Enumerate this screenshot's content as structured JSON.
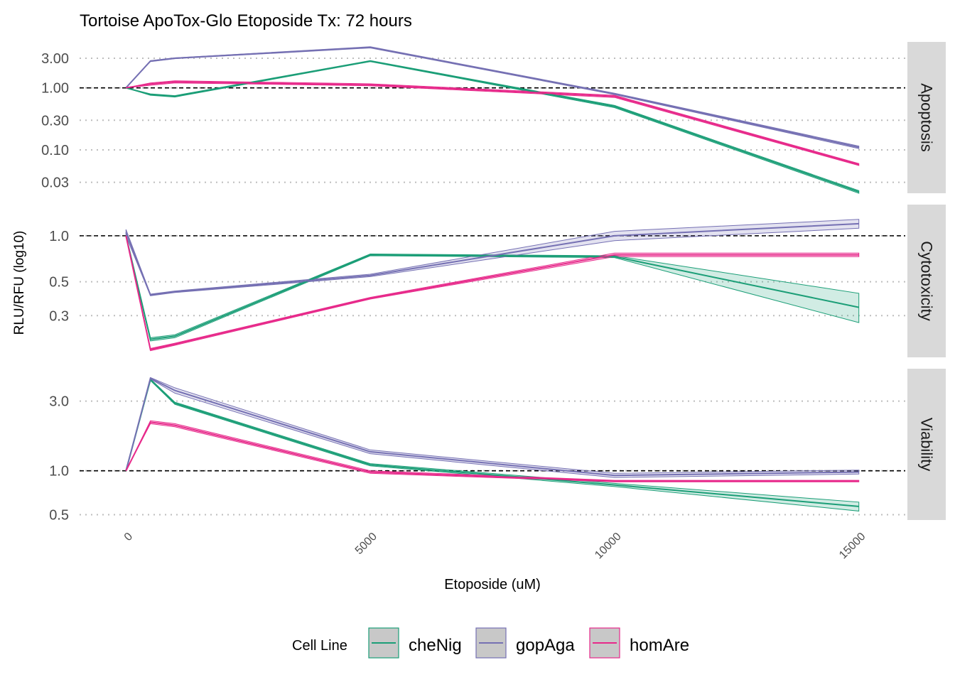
{
  "chart_data": {
    "type": "line",
    "title": "Tortoise ApoTox-Glo Etoposide Tx: 72 hours",
    "xlabel": "Etoposide (uM)",
    "ylabel": "RLU/RFU (log10)",
    "x_scale": "linear",
    "y_scale": "log10",
    "x_ticks": [
      0,
      5000,
      10000,
      15000
    ],
    "x_tick_labels": [
      "0",
      "5000",
      "10000",
      "15000"
    ],
    "x": [
      0,
      500,
      1000,
      5000,
      10000,
      15000
    ],
    "reference_line": 1.0,
    "legend": {
      "title": "Cell Line",
      "position": "bottom",
      "entries": [
        "cheNig",
        "gopAga",
        "homAre"
      ]
    },
    "colors": {
      "cheNig": "#1b9e77",
      "gopAga": "#7570b3",
      "homAre": "#e7298a"
    },
    "panels": [
      {
        "label": "Apoptosis",
        "ylim": [
          0.02,
          5.5
        ],
        "y_ticks": [
          0.03,
          0.1,
          0.3,
          1.0,
          3.0
        ],
        "y_tick_labels": [
          "0.03",
          "0.10",
          "0.30",
          "1.00",
          "3.00"
        ],
        "series": [
          {
            "name": "cheNig",
            "values": [
              1.0,
              0.78,
              0.73,
              2.7,
              0.5,
              0.021
            ],
            "lower": [
              1.0,
              0.76,
              0.71,
              2.65,
              0.48,
              0.02
            ],
            "upper": [
              1.0,
              0.8,
              0.75,
              2.75,
              0.52,
              0.022
            ]
          },
          {
            "name": "gopAga",
            "values": [
              1.0,
              2.7,
              3.0,
              4.5,
              0.8,
              0.11
            ],
            "lower": [
              1.0,
              2.65,
              2.95,
              4.4,
              0.78,
              0.105
            ],
            "upper": [
              1.0,
              2.75,
              3.05,
              4.6,
              0.82,
              0.115
            ]
          },
          {
            "name": "homAre",
            "values": [
              1.0,
              1.15,
              1.25,
              1.12,
              0.73,
              0.058
            ],
            "lower": [
              1.0,
              1.1,
              1.2,
              1.08,
              0.7,
              0.056
            ],
            "upper": [
              1.0,
              1.2,
              1.3,
              1.16,
              0.76,
              0.06
            ]
          }
        ]
      },
      {
        "label": "Cytotoxicity",
        "ylim": [
          0.16,
          1.6
        ],
        "y_ticks": [
          0.3,
          0.5,
          1.0
        ],
        "y_tick_labels": [
          "0.3",
          "0.5",
          "1.0"
        ],
        "series": [
          {
            "name": "cheNig",
            "values": [
              1.0,
              0.21,
              0.22,
              0.75,
              0.73,
              0.34
            ],
            "lower": [
              1.0,
              0.205,
              0.215,
              0.74,
              0.72,
              0.27
            ],
            "upper": [
              1.0,
              0.215,
              0.225,
              0.76,
              0.74,
              0.42
            ]
          },
          {
            "name": "gopAga",
            "values": [
              1.05,
              0.41,
              0.43,
              0.55,
              1.0,
              1.2
            ],
            "lower": [
              1.0,
              0.405,
              0.425,
              0.54,
              0.93,
              1.12
            ],
            "upper": [
              1.1,
              0.415,
              0.435,
              0.56,
              1.07,
              1.28
            ]
          },
          {
            "name": "homAre",
            "values": [
              1.0,
              0.18,
              0.195,
              0.39,
              0.75,
              0.75
            ],
            "lower": [
              1.0,
              0.177,
              0.192,
              0.385,
              0.73,
              0.73
            ],
            "upper": [
              1.0,
              0.183,
              0.198,
              0.395,
              0.77,
              0.77
            ]
          }
        ]
      },
      {
        "label": "Viability",
        "ylim": [
          0.46,
          5.0
        ],
        "y_ticks": [
          0.5,
          1.0,
          3.0
        ],
        "y_tick_labels": [
          "0.5",
          "1.0",
          "3.0"
        ],
        "series": [
          {
            "name": "cheNig",
            "values": [
              1.0,
              4.2,
              2.9,
              1.1,
              0.8,
              0.57
            ],
            "lower": [
              1.0,
              4.15,
              2.85,
              1.08,
              0.78,
              0.53
            ],
            "upper": [
              1.0,
              4.25,
              2.95,
              1.12,
              0.82,
              0.61
            ]
          },
          {
            "name": "gopAga",
            "values": [
              1.0,
              4.3,
              3.55,
              1.35,
              0.93,
              0.98
            ],
            "lower": [
              1.0,
              4.25,
              3.4,
              1.31,
              0.9,
              0.95
            ],
            "upper": [
              1.0,
              4.35,
              3.7,
              1.39,
              0.96,
              1.01
            ]
          },
          {
            "name": "homAre",
            "values": [
              1.0,
              2.15,
              2.05,
              0.98,
              0.85,
              0.85
            ],
            "lower": [
              1.0,
              2.1,
              2.0,
              0.96,
              0.84,
              0.84
            ],
            "upper": [
              1.0,
              2.2,
              2.1,
              1.0,
              0.86,
              0.86
            ]
          }
        ]
      }
    ]
  }
}
